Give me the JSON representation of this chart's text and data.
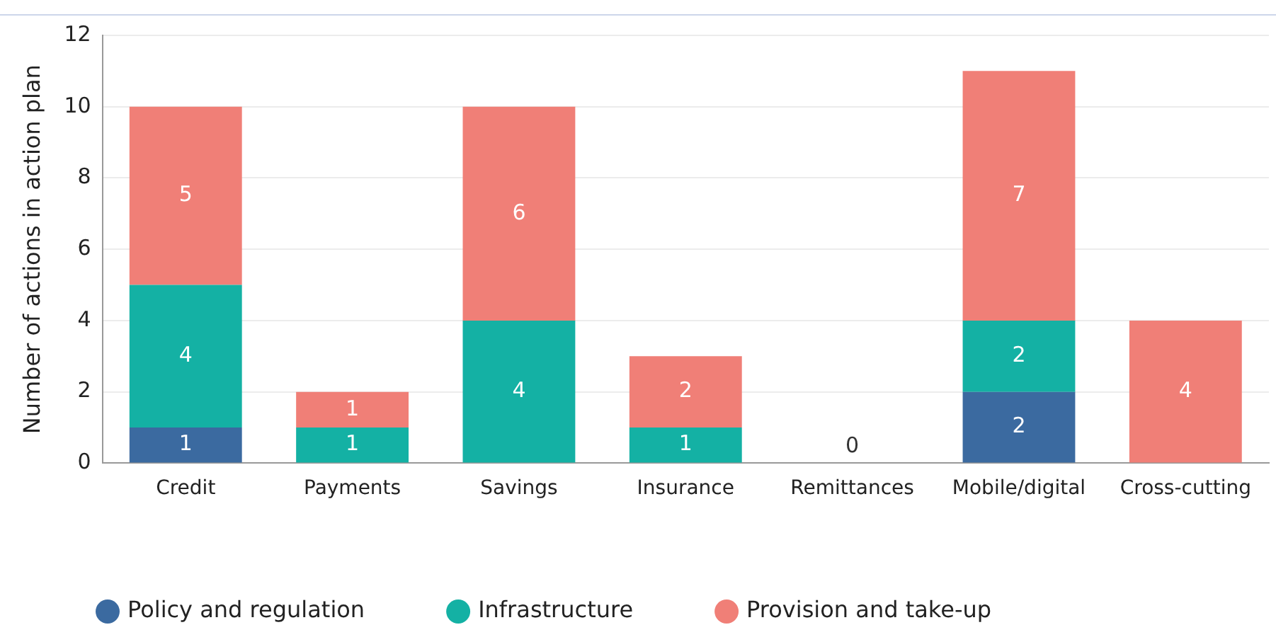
{
  "chart_data": {
    "type": "bar",
    "stacked": true,
    "ylabel": "Number of actions in action plan",
    "categories": [
      "Credit",
      "Payments",
      "Savings",
      "Insurance",
      "Remittances",
      "Mobile/digital",
      "Cross-cutting"
    ],
    "series": [
      {
        "name": "Policy and regulation",
        "color": "#3b6aa0",
        "values": [
          1,
          0,
          0,
          0,
          0,
          2,
          0
        ],
        "value_labels": [
          "1",
          null,
          null,
          null,
          null,
          "2",
          null
        ]
      },
      {
        "name": "Infrastructure",
        "color": "#14b1a4",
        "values": [
          4,
          1,
          4,
          1,
          0,
          2,
          0
        ],
        "value_labels": [
          "4",
          "1",
          "4",
          "1",
          null,
          "2",
          null
        ]
      },
      {
        "name": "Provision and take-up",
        "color": "#f07f77",
        "values": [
          5,
          1,
          6,
          2,
          0,
          7,
          4
        ],
        "value_labels": [
          "5",
          "1",
          "6",
          "2",
          null,
          "7",
          "4"
        ]
      }
    ],
    "totals": [
      null,
      null,
      null,
      null,
      "0",
      null,
      null
    ],
    "ylim": [
      0,
      12
    ],
    "yticks": [
      0,
      2,
      4,
      6,
      8,
      10,
      12
    ],
    "grid": "y",
    "legend": "bottom"
  }
}
